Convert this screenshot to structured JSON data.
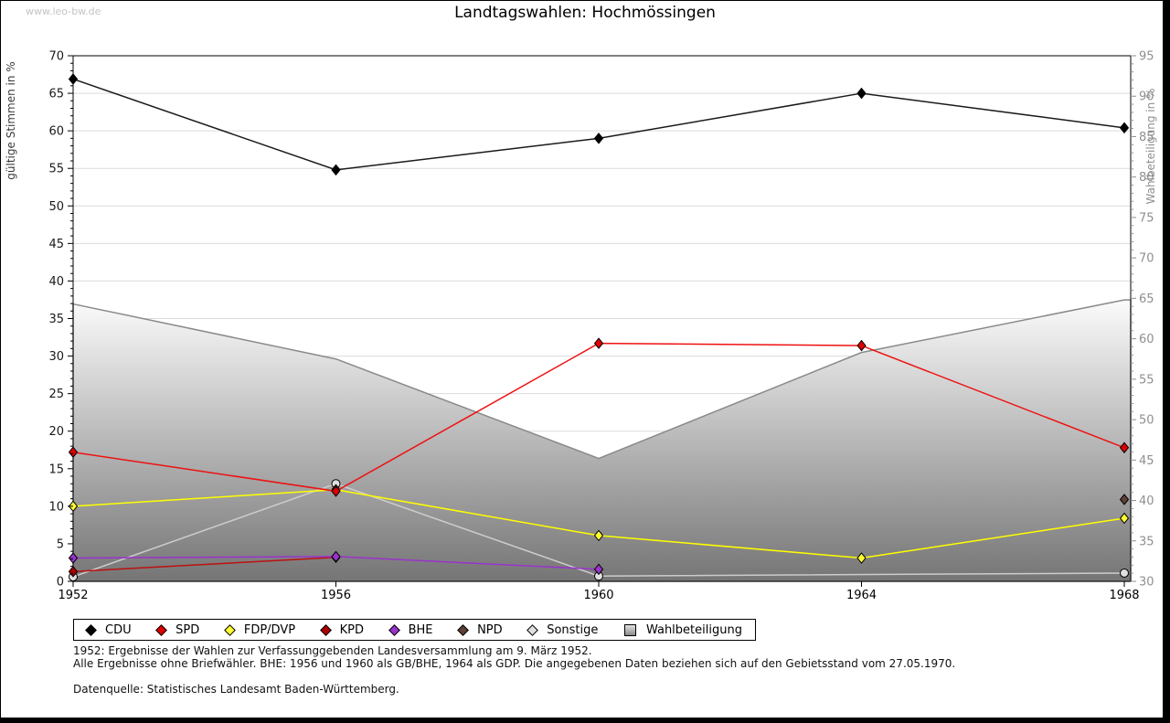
{
  "page": {
    "watermark": "www.leo-bw.de",
    "title": "Landtagswahlen: Hochmössingen",
    "footnotes": [
      "1952: Ergebnisse der Wahlen zur Verfassunggebenden Landesversammlung am 9. März 1952.",
      "Alle Ergebnisse ohne Briefwähler. BHE: 1956 und 1960 als GB/BHE, 1964 als GDP. Die angegebenen Daten beziehen sich auf den Gebietsstand vom 27.05.1970.",
      "Datenquelle: Statistisches Landesamt Baden-Württemberg."
    ]
  },
  "chart_data": {
    "type": "line",
    "title": "Landtagswahlen: Hochmössingen",
    "x": [
      1952,
      1956,
      1960,
      1964,
      1968
    ],
    "grid": true,
    "legend_position": "bottom",
    "axes": {
      "left": {
        "label": "gültige Stimmen in %",
        "min": 0,
        "max": 70,
        "major": 5,
        "minor": 1
      },
      "right": {
        "label": "Wahlbeteiligung in %",
        "min": 30,
        "max": 95,
        "major": 5,
        "minor": 1
      }
    },
    "series": [
      {
        "name": "CDU",
        "axis": "left",
        "type": "line",
        "marker": "diamond",
        "z": 7,
        "color": "#1a1a1a",
        "marker_color": "#000000",
        "points": [
          [
            1952,
            66.9
          ],
          [
            1956,
            54.8
          ],
          [
            1960,
            59.0
          ],
          [
            1964,
            65.0
          ],
          [
            1968,
            60.4
          ]
        ]
      },
      {
        "name": "SPD",
        "axis": "left",
        "type": "line",
        "marker": "diamond",
        "z": 6,
        "color": "#ee1111",
        "marker_color": "#dd0000",
        "points": [
          [
            1952,
            17.2
          ],
          [
            1956,
            12.0
          ],
          [
            1960,
            31.7
          ],
          [
            1964,
            31.4
          ],
          [
            1968,
            17.8
          ]
        ]
      },
      {
        "name": "FDP/DVP",
        "axis": "left",
        "type": "line",
        "marker": "diamond",
        "z": 5,
        "color": "#ffff00",
        "marker_color": "#ffff33",
        "points": [
          [
            1952,
            10.0
          ],
          [
            1956,
            12.2
          ],
          [
            1960,
            6.1
          ],
          [
            1964,
            3.1
          ],
          [
            1968,
            8.4
          ]
        ]
      },
      {
        "name": "KPD",
        "axis": "left",
        "type": "line",
        "marker": "diamond",
        "z": 2,
        "color": "#bb1111",
        "marker_color": "#aa0000",
        "points": [
          [
            1952,
            1.3
          ],
          [
            1956,
            3.2
          ]
        ]
      },
      {
        "name": "BHE",
        "axis": "left",
        "type": "line",
        "marker": "diamond",
        "z": 3,
        "color": "#9933cc",
        "marker_color": "#9933cc",
        "points": [
          [
            1952,
            3.1
          ],
          [
            1956,
            3.3
          ],
          [
            1960,
            1.6
          ]
        ]
      },
      {
        "name": "NPD",
        "axis": "left",
        "type": "line",
        "marker": "diamond",
        "z": 4,
        "color": "#5d4037",
        "marker_color": "#5d4037",
        "points": [
          [
            1968,
            10.9
          ]
        ]
      },
      {
        "name": "Sonstige",
        "axis": "left",
        "type": "line",
        "marker": "circle",
        "z": 1,
        "color": "#cccccc",
        "marker_color": "#e0e0e0",
        "points": [
          [
            1952,
            0.6
          ],
          [
            1956,
            13.0
          ],
          [
            1960,
            0.7
          ],
          [
            1968,
            1.1
          ]
        ]
      },
      {
        "name": "Wahlbeteiligung",
        "axis": "right",
        "type": "area",
        "marker": "square",
        "z": 0,
        "color": "#8a8a8a",
        "fill_top": "#fbfbfb",
        "fill_bottom": "#757575",
        "points": [
          [
            1952,
            64.3
          ],
          [
            1956,
            57.5
          ],
          [
            1960,
            45.2
          ],
          [
            1964,
            58.3
          ],
          [
            1968,
            64.8
          ]
        ]
      }
    ]
  }
}
